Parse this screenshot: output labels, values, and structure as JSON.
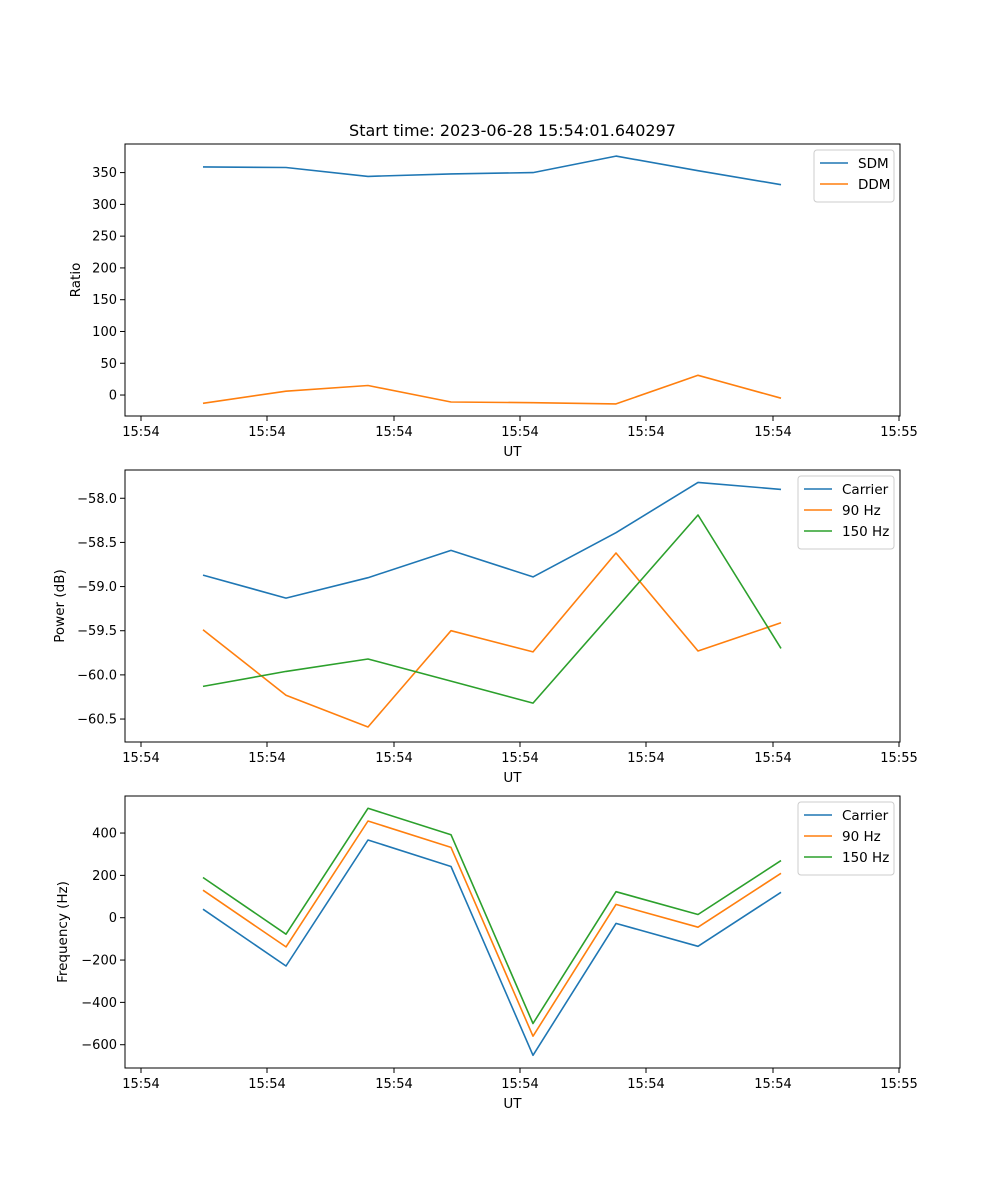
{
  "chart_data": [
    {
      "type": "line",
      "title": "Start time: 2023-06-28 15:54:01.640297",
      "xlabel": "UT",
      "ylabel": "Ratio",
      "x_tick_labels": [
        "15:54",
        "15:54",
        "15:54",
        "15:54",
        "15:54",
        "15:54",
        "15:55"
      ],
      "y_ticks": [
        0,
        50,
        100,
        150,
        200,
        250,
        300,
        350
      ],
      "ylim": [
        -33,
        395
      ],
      "grid": false,
      "legend_position": "upper right",
      "series": [
        {
          "name": "SDM",
          "color": "#1f77b4",
          "values": [
            359,
            358,
            344,
            348,
            350,
            376,
            353,
            331
          ]
        },
        {
          "name": "DDM",
          "color": "#ff7f0e",
          "values": [
            -13,
            6,
            15,
            -11,
            -12,
            -14,
            31,
            -5
          ]
        }
      ]
    },
    {
      "type": "line",
      "title": "",
      "xlabel": "UT",
      "ylabel": "Power (dB)",
      "x_tick_labels": [
        "15:54",
        "15:54",
        "15:54",
        "15:54",
        "15:54",
        "15:54",
        "15:55"
      ],
      "y_ticks": [
        -60.5,
        -60.0,
        -59.5,
        -59.0,
        -58.5,
        -58.0
      ],
      "y_tick_labels": [
        "−60.5",
        "−60.0",
        "−59.5",
        "−59.0",
        "−58.5",
        "−58.0"
      ],
      "ylim": [
        -60.76,
        -57.68
      ],
      "grid": false,
      "legend_position": "upper right",
      "series": [
        {
          "name": "Carrier",
          "color": "#1f77b4",
          "values": [
            -58.87,
            -59.13,
            -58.9,
            -58.59,
            -58.89,
            -58.39,
            -57.82,
            -57.9
          ]
        },
        {
          "name": "90 Hz",
          "color": "#ff7f0e",
          "values": [
            -59.49,
            -60.23,
            -60.59,
            -59.5,
            -59.74,
            -58.62,
            -59.73,
            -59.41
          ]
        },
        {
          "name": "150 Hz",
          "color": "#2ca02c",
          "values": [
            -60.13,
            -59.96,
            -59.82,
            -60.07,
            -60.32,
            -59.25,
            -58.19,
            -59.7
          ]
        }
      ]
    },
    {
      "type": "line",
      "title": "",
      "xlabel": "UT",
      "ylabel": "Frequency (Hz)",
      "x_tick_labels": [
        "15:54",
        "15:54",
        "15:54",
        "15:54",
        "15:54",
        "15:54",
        "15:55"
      ],
      "y_ticks": [
        -600,
        -400,
        -200,
        0,
        200,
        400
      ],
      "y_tick_labels": [
        "−600",
        "−400",
        "−200",
        "0",
        "200",
        "400"
      ],
      "ylim": [
        -710,
        575
      ],
      "grid": false,
      "legend_position": "upper right",
      "series": [
        {
          "name": "Carrier",
          "color": "#1f77b4",
          "values": [
            40,
            -228,
            367,
            242,
            -650,
            -27,
            -135,
            120
          ]
        },
        {
          "name": "90 Hz",
          "color": "#ff7f0e",
          "values": [
            130,
            -138,
            457,
            332,
            -560,
            63,
            -45,
            210
          ]
        },
        {
          "name": "150 Hz",
          "color": "#2ca02c",
          "values": [
            190,
            -78,
            517,
            392,
            -500,
            123,
            15,
            270
          ]
        }
      ]
    }
  ]
}
